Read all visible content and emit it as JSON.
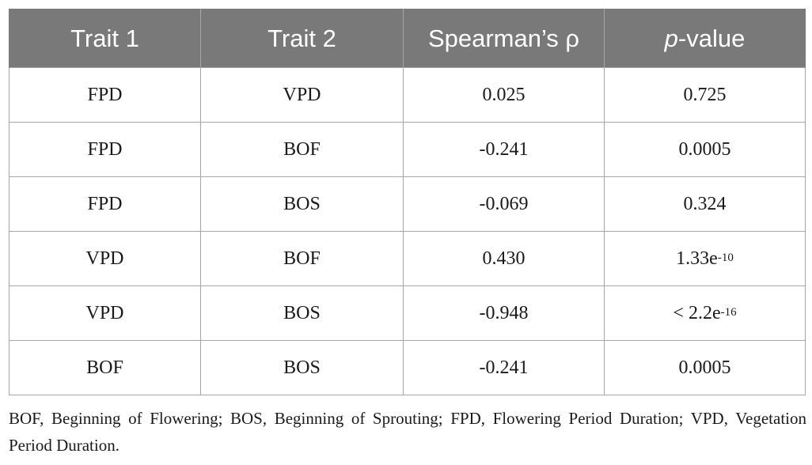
{
  "table": {
    "headers": {
      "trait1": "Trait 1",
      "trait2": "Trait 2",
      "rho": "Spearman’s ρ",
      "p_italic": "p",
      "p_rest": "-value"
    },
    "rows": [
      {
        "trait1": "FPD",
        "trait2": "VPD",
        "rho": "0.025",
        "p_base": "0.725",
        "p_exp": ""
      },
      {
        "trait1": "FPD",
        "trait2": "BOF",
        "rho": "-0.241",
        "p_base": "0.0005",
        "p_exp": ""
      },
      {
        "trait1": "FPD",
        "trait2": "BOS",
        "rho": "-0.069",
        "p_base": "0.324",
        "p_exp": ""
      },
      {
        "trait1": "VPD",
        "trait2": "BOF",
        "rho": "0.430",
        "p_base": "1.33e",
        "p_exp": "-10"
      },
      {
        "trait1": "VPD",
        "trait2": "BOS",
        "rho": "-0.948",
        "p_base": "< 2.2e",
        "p_exp": "-16"
      },
      {
        "trait1": "BOF",
        "trait2": "BOS",
        "rho": "-0.241",
        "p_base": "0.0005",
        "p_exp": ""
      }
    ]
  },
  "footnote": "BOF, Beginning of Flowering; BOS, Beginning of Sprouting; FPD, Flowering Period Duration; VPD, Vegetation Period Duration.",
  "colors": {
    "header_bg": "#797979",
    "header_text": "#ffffff",
    "border": "#a6a6a6"
  }
}
